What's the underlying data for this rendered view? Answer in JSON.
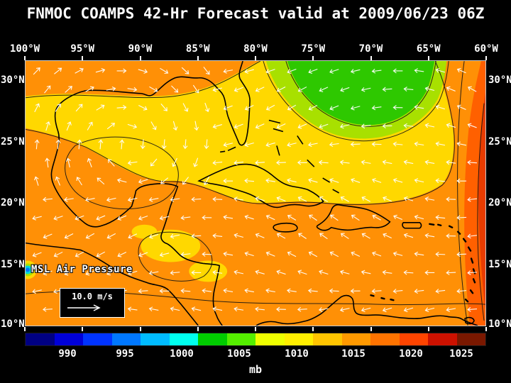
{
  "title": "FNMOC COAMPS 42-Hr Forecast valid at 2009/06/23 06Z",
  "map": {
    "field_label": "MSL Air Pressure",
    "wind_scale_label": "10.0 m/s",
    "lon_labels": [
      "100°W",
      "95°W",
      "90°W",
      "85°W",
      "80°W",
      "75°W",
      "70°W",
      "65°W",
      "60°W"
    ],
    "lat_labels": [
      "30°N",
      "25°N",
      "20°N",
      "15°N",
      "10°N"
    ]
  },
  "colorbar": {
    "unit": "mb",
    "tick_labels": [
      "990",
      "995",
      "1000",
      "1005",
      "1010",
      "1015",
      "1020",
      "1025"
    ],
    "colors": [
      "#000082",
      "#0000d8",
      "#0033ff",
      "#0077ff",
      "#00bbff",
      "#00ffee",
      "#00cc00",
      "#55ee00",
      "#eeff00",
      "#ffee00",
      "#ffc400",
      "#ff9900",
      "#ff7300",
      "#ff4400",
      "#cc1100",
      "#7a1800"
    ]
  },
  "field_palette": {
    "base": "#ff9006",
    "yellow": "#ffd800",
    "yellow_green": "#a8e000",
    "green": "#2ec800",
    "red_band": "#ff6000",
    "red_core": "#e83c00",
    "cyan": "#00d8d8",
    "blue": "#0077ff"
  }
}
